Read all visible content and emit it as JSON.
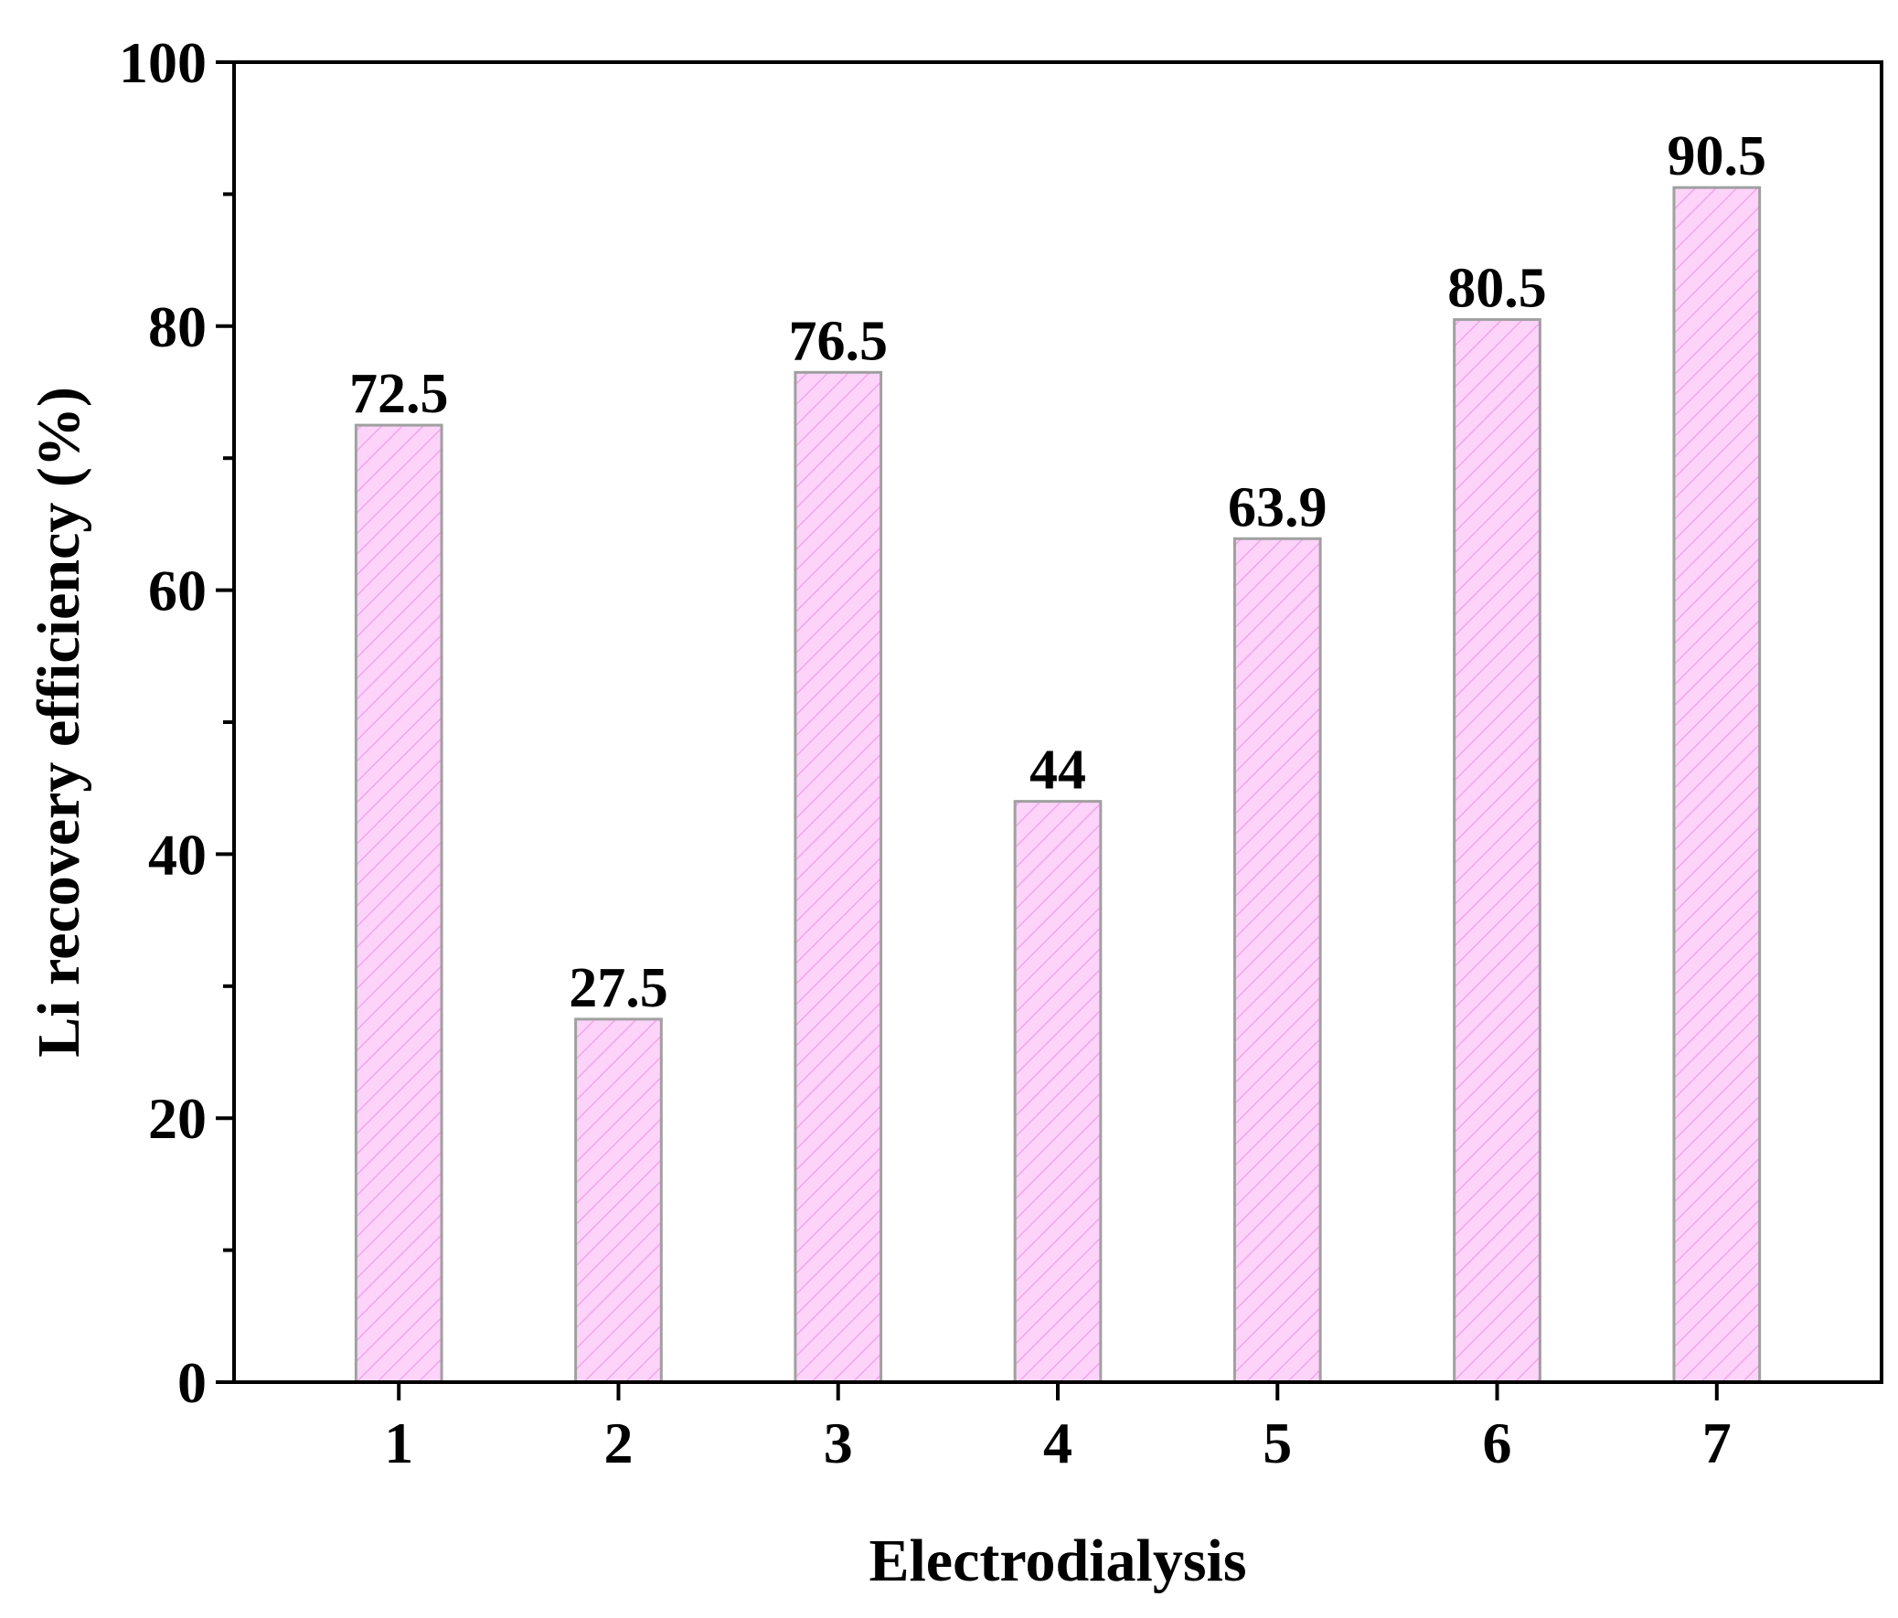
{
  "chart_data": {
    "type": "bar",
    "title": "",
    "xlabel": "Electrodialysis",
    "ylabel": "Li recovery efficiency (%)",
    "categories": [
      "1",
      "2",
      "3",
      "4",
      "5",
      "6",
      "7"
    ],
    "values": [
      72.5,
      27.5,
      76.5,
      44,
      63.9,
      80.5,
      90.5
    ],
    "data_labels": [
      "72.5",
      "27.5",
      "76.5",
      "44",
      "63.9",
      "80.5",
      "90.5"
    ],
    "ylim": [
      0,
      100
    ],
    "yticks": [
      0,
      20,
      40,
      60,
      80,
      100
    ],
    "yticks_minor": [
      10,
      30,
      50,
      70,
      90
    ],
    "grid": false,
    "legend": "none",
    "colors": {
      "bar_fill": "#fdd3fa",
      "bar_hatch": "#efa8e8",
      "bar_edge": "#a0a0a0",
      "axis": "#000000"
    }
  }
}
